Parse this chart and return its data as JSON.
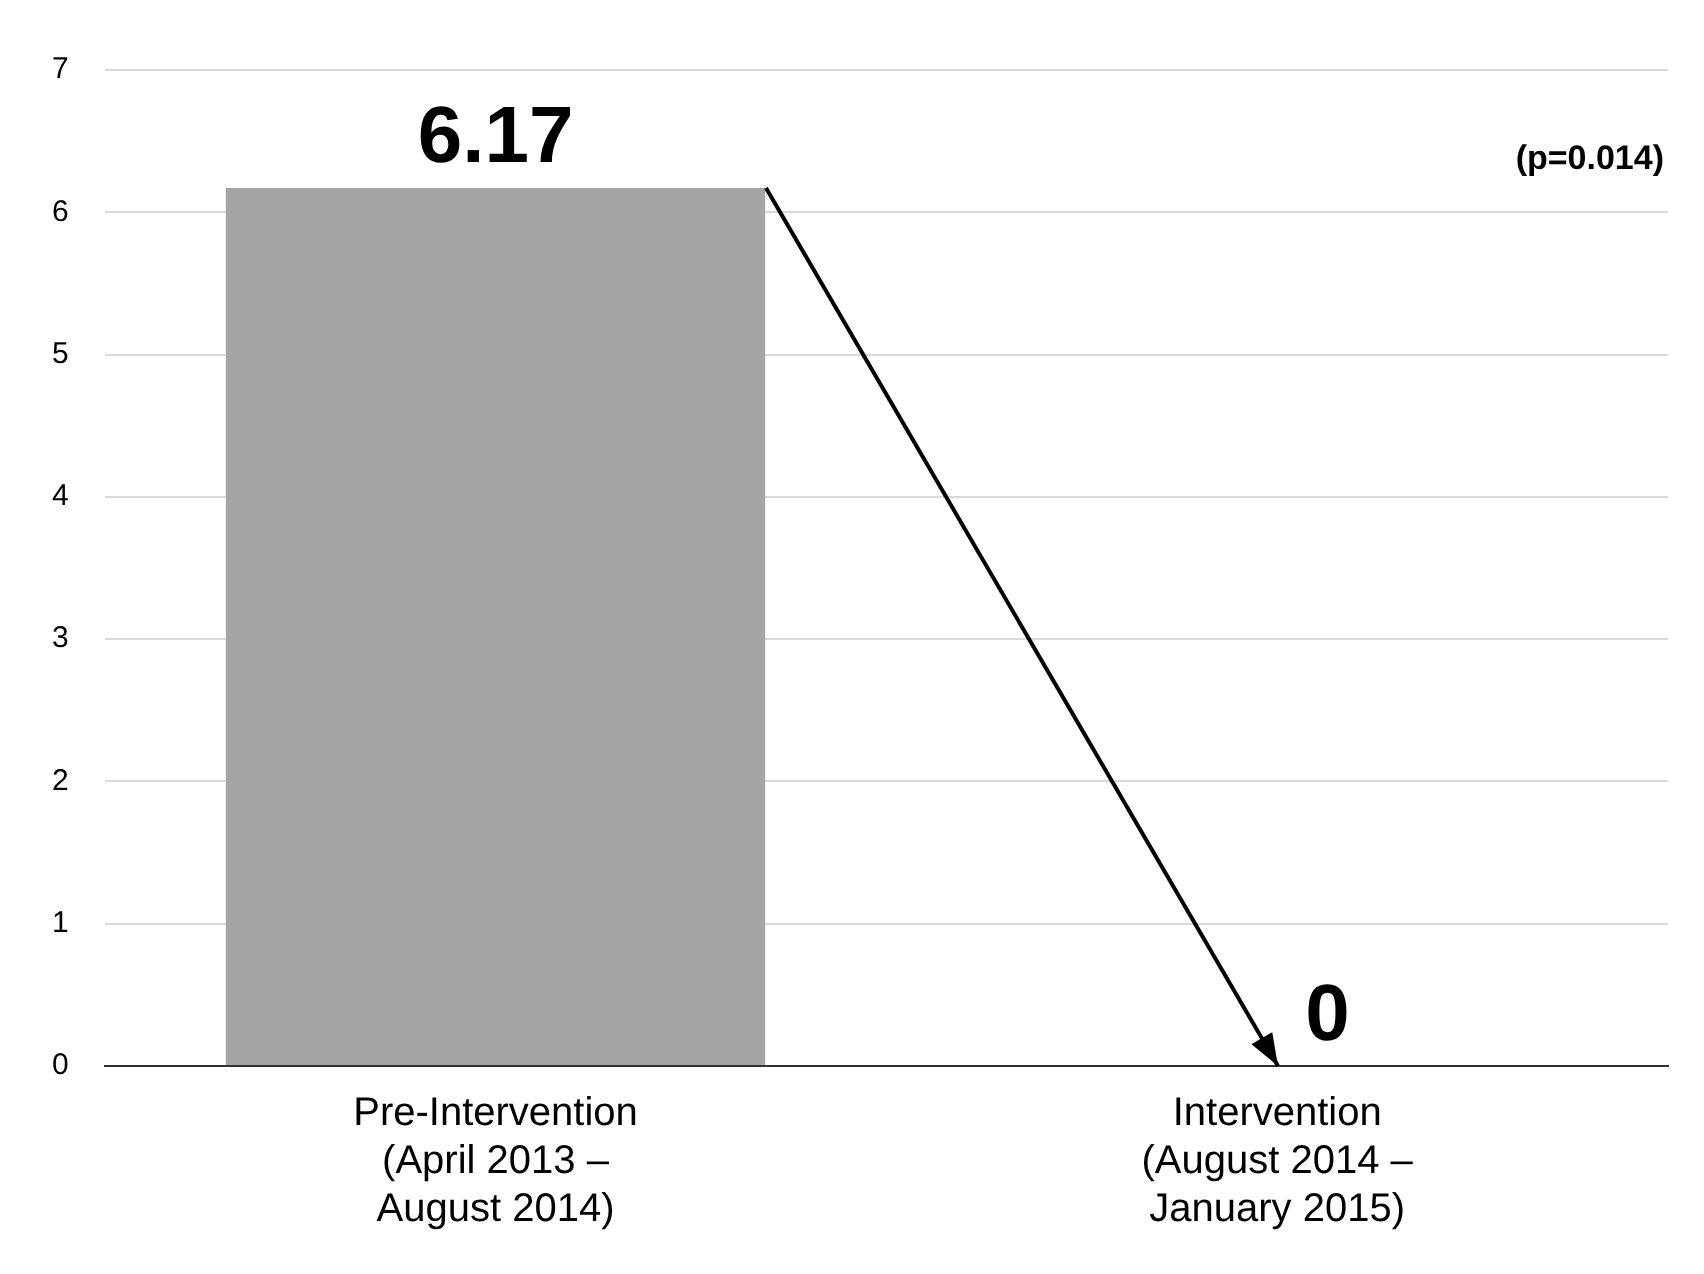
{
  "chart_data": {
    "type": "bar",
    "categories": [
      "Pre-Intervention (April 2013 – August 2014)",
      "Intervention (August 2014 – January 2015)"
    ],
    "values": [
      6.17,
      0
    ],
    "color": "#a5a5a5",
    "ylim": [
      0,
      7
    ],
    "yticks": [
      0,
      1,
      2,
      3,
      4,
      5,
      6,
      7
    ],
    "grid": "y",
    "legend": false,
    "data_labels": true,
    "annotations": [
      "(p=0.014)"
    ]
  }
}
